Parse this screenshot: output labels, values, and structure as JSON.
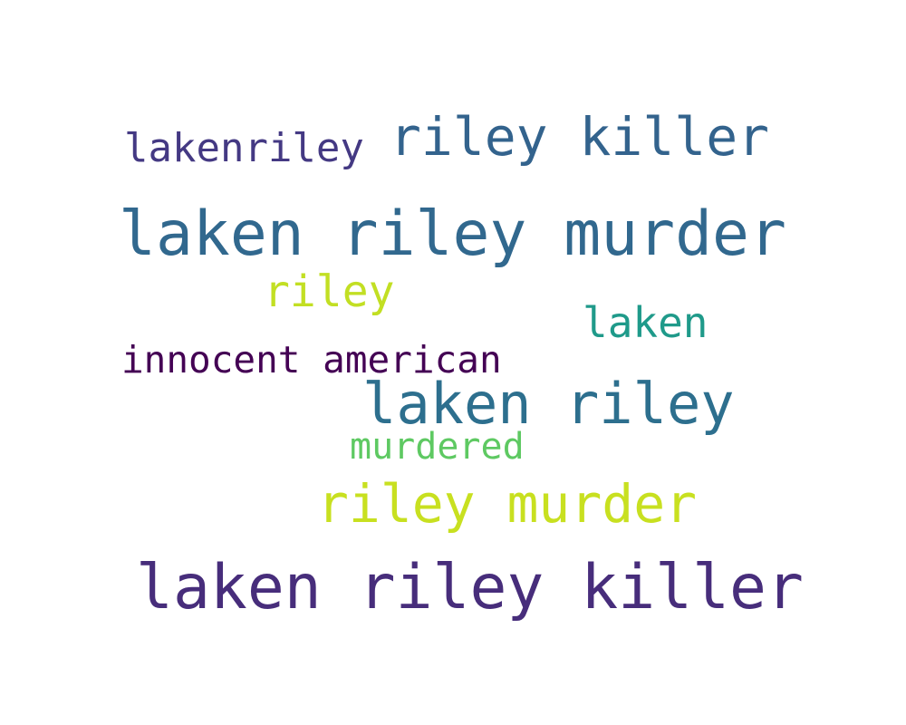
{
  "word_cloud": {
    "words": [
      {
        "text": "laken riley murder",
        "color": "#31688e"
      },
      {
        "text": "laken riley killer",
        "color": "#472d7b"
      },
      {
        "text": "riley killer",
        "color": "#33638d"
      },
      {
        "text": "laken riley",
        "color": "#2d6f8e"
      },
      {
        "text": "riley murder",
        "color": "#c8e020"
      },
      {
        "text": "lakenriley",
        "color": "#443983"
      },
      {
        "text": "riley",
        "color": "#c2df23"
      },
      {
        "text": "laken",
        "color": "#1f9a8a"
      },
      {
        "text": "innocent american",
        "color": "#440154"
      },
      {
        "text": "murdered",
        "color": "#5ec962"
      }
    ]
  }
}
